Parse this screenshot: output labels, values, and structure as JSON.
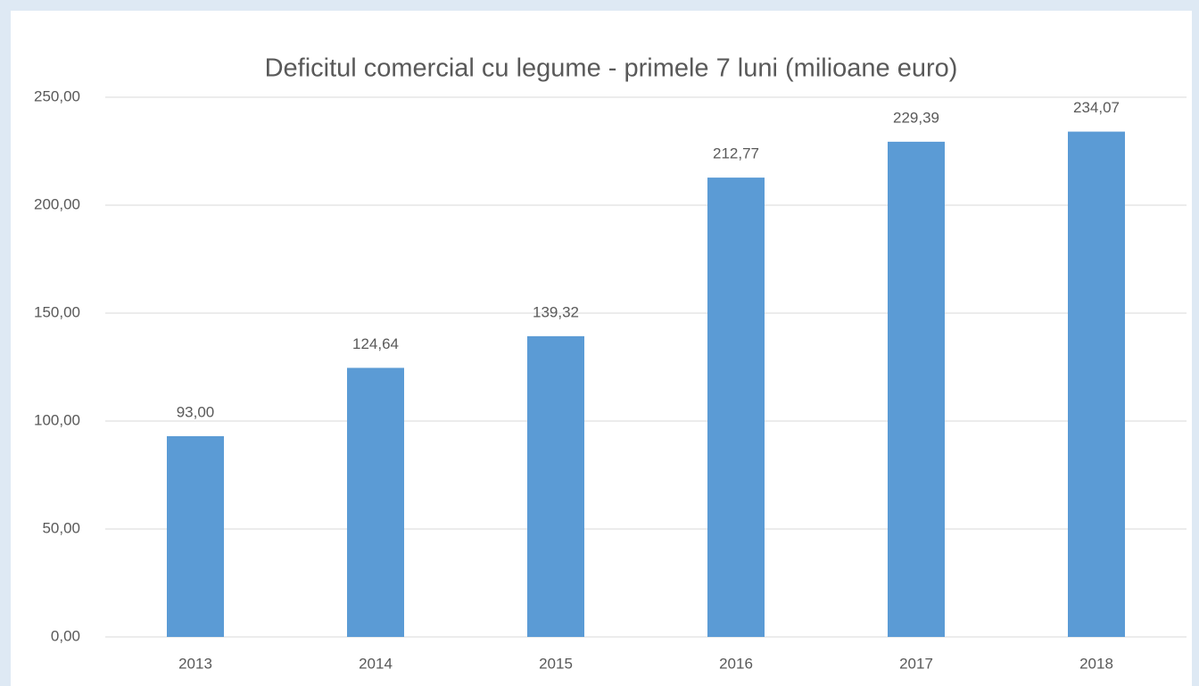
{
  "chart_data": {
    "type": "bar",
    "title": "Deficitul comercial cu legume - primele 7 luni (milioane euro)",
    "categories": [
      "2013",
      "2014",
      "2015",
      "2016",
      "2017",
      "2018"
    ],
    "values": [
      93.0,
      124.64,
      139.32,
      212.77,
      229.39,
      234.07
    ],
    "value_labels": [
      "93,00",
      "124,64",
      "139,32",
      "212,77",
      "229,39",
      "234,07"
    ],
    "color": "#5b9bd5",
    "ylim": [
      0,
      250
    ],
    "yticks": [
      {
        "value": 0,
        "label": "0,00"
      },
      {
        "value": 50,
        "label": "50,00"
      },
      {
        "value": 100,
        "label": "100,00"
      },
      {
        "value": 150,
        "label": "150,00"
      },
      {
        "value": 200,
        "label": "200,00"
      },
      {
        "value": 250,
        "label": "250,00"
      }
    ],
    "grid": true
  }
}
